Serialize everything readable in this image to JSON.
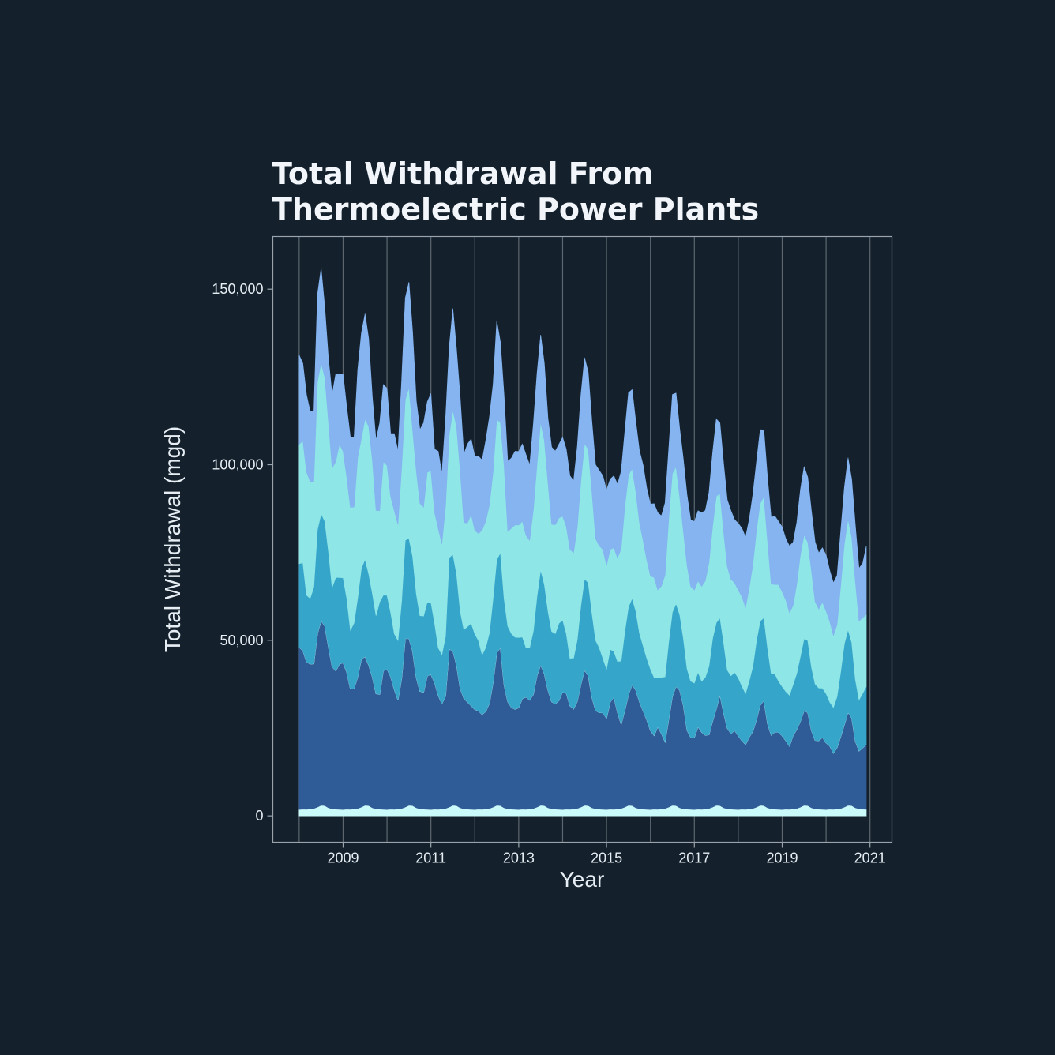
{
  "chart_data": {
    "type": "area",
    "title": [
      "Total Withdrawal From",
      "Thermoelectric Power Plants"
    ],
    "xlabel": "Year",
    "ylabel": "Total Withdrawal (mgd)",
    "xlim": [
      2007.4,
      2021.5
    ],
    "ylim": [
      -7500,
      165000
    ],
    "x_ticks": [
      2009,
      2011,
      2013,
      2015,
      2017,
      2019,
      2021
    ],
    "x_tick_labels": [
      "2009",
      "2011",
      "2013",
      "2015",
      "2017",
      "2019",
      "2021"
    ],
    "x_grid": [
      2008,
      2009,
      2010,
      2011,
      2012,
      2013,
      2014,
      2015,
      2016,
      2017,
      2018,
      2019,
      2020,
      2021
    ],
    "y_ticks": [
      0,
      50000,
      100000,
      150000
    ],
    "y_tick_labels": [
      "0",
      "50,000",
      "100,000",
      "150,000"
    ],
    "grid": true,
    "stacked": true,
    "x_start": 2008.0,
    "x_step": 0.08333333,
    "series": [
      {
        "color": "#cbfafb",
        "values": [
          1800,
          1900,
          1850,
          1950,
          2100,
          2500,
          3000,
          2900,
          2300,
          2000,
          1900,
          1850,
          1800,
          1900,
          1850,
          1950,
          2100,
          2500,
          3000,
          2900,
          2300,
          2000,
          1900,
          1850,
          1800,
          1900,
          1850,
          1950,
          2100,
          2500,
          3000,
          2900,
          2300,
          2000,
          1900,
          1850,
          1800,
          1900,
          1850,
          1950,
          2100,
          2500,
          3000,
          2900,
          2300,
          2000,
          1900,
          1850,
          1800,
          1900,
          1850,
          1950,
          2100,
          2500,
          3000,
          2900,
          2300,
          2000,
          1900,
          1850,
          1800,
          1900,
          1850,
          1950,
          2100,
          2500,
          3000,
          2900,
          2300,
          2000,
          1900,
          1850,
          1800,
          1900,
          1850,
          1950,
          2100,
          2500,
          3000,
          2900,
          2300,
          2000,
          1900,
          1850,
          1800,
          1900,
          1850,
          1950,
          2100,
          2500,
          3000,
          2900,
          2300,
          2000,
          1900,
          1850,
          1800,
          1900,
          1850,
          1950,
          2100,
          2500,
          3000,
          2900,
          2300,
          2000,
          1900,
          1850,
          1800,
          1900,
          1850,
          1950,
          2100,
          2500,
          3000,
          2900,
          2300,
          2000,
          1900,
          1850,
          1800,
          1900,
          1850,
          1950,
          2100,
          2500,
          3000,
          2900,
          2300,
          2000,
          1900,
          1850,
          1800,
          1900,
          1850,
          1950,
          2100,
          2500,
          3000,
          2900,
          2300,
          2000,
          1900,
          1850,
          1800,
          1900,
          1850,
          1950,
          2100,
          2500,
          3000,
          2900,
          2300,
          2000,
          1900,
          1850
        ]
      },
      {
        "color": "#2f5b96",
        "values": [
          46200,
          45200,
          42000,
          41300,
          41200,
          49400,
          52600,
          51200,
          45800,
          40500,
          39400,
          41400,
          41800,
          39000,
          34300,
          34300,
          37500,
          42100,
          42400,
          40000,
          37200,
          32800,
          32700,
          39500,
          40000,
          37700,
          34100,
          31000,
          37000,
          48000,
          47500,
          44000,
          37000,
          33500,
          33300,
          38000,
          38500,
          36000,
          32500,
          30000,
          32000,
          45000,
          44000,
          40000,
          34000,
          31500,
          30500,
          29500,
          28500,
          28000,
          27000,
          27800,
          30000,
          35500,
          43500,
          45000,
          35000,
          30500,
          29000,
          28500,
          29000,
          31500,
          32000,
          31000,
          32500,
          37500,
          40000,
          37500,
          33500,
          30500,
          30000,
          31000,
          33500,
          33000,
          29500,
          28500,
          30500,
          35000,
          38500,
          37000,
          31500,
          28000,
          27500,
          27500,
          26000,
          30500,
          32000,
          27500,
          24000,
          27500,
          31500,
          34500,
          33500,
          30500,
          28000,
          25500,
          22500,
          21000,
          23500,
          21500,
          19000,
          25000,
          31000,
          34000,
          33500,
          29500,
          22500,
          20500,
          20500,
          23500,
          22000,
          21000,
          21000,
          24500,
          27500,
          31500,
          27000,
          23000,
          21500,
          22500,
          21000,
          19500,
          18500,
          20500,
          22000,
          25000,
          28500,
          30000,
          24000,
          21000,
          22000,
          22000,
          21000,
          19500,
          18000,
          21000,
          22500,
          24500,
          27000,
          26500,
          22000,
          19500,
          19500,
          20500,
          19000,
          18000,
          16000,
          17500,
          20500,
          23500,
          26500,
          25000,
          19000,
          16500,
          17500,
          18500
        ]
      },
      {
        "color": "#36a5ca",
        "values": [
          23800,
          25000,
          19000,
          18700,
          21800,
          29600,
          30400,
          29800,
          27200,
          22500,
          26600,
          24600,
          24200,
          21000,
          16700,
          18700,
          22500,
          25900,
          27600,
          26000,
          23800,
          22200,
          26300,
          21500,
          21000,
          18300,
          15900,
          17000,
          22000,
          28000,
          28500,
          27000,
          24000,
          21500,
          21700,
          21000,
          20500,
          17000,
          13500,
          14000,
          17000,
          26000,
          27500,
          26000,
          22000,
          19500,
          21500,
          23500,
          21500,
          20000,
          17000,
          18200,
          20000,
          24000,
          26500,
          27000,
          24500,
          21500,
          21000,
          20500,
          20000,
          17500,
          14000,
          15000,
          18000,
          22500,
          27000,
          25500,
          22500,
          20000,
          20000,
          22000,
          20500,
          17000,
          13500,
          14500,
          17500,
          22500,
          26000,
          26500,
          24000,
          20000,
          18500,
          15500,
          14000,
          15000,
          13000,
          14500,
          18000,
          22500,
          25000,
          24500,
          22500,
          19500,
          18500,
          17500,
          17500,
          16500,
          14000,
          16000,
          18500,
          22000,
          24000,
          23500,
          21500,
          19000,
          17500,
          16000,
          15500,
          15500,
          14500,
          16500,
          19500,
          23500,
          24500,
          22000,
          20000,
          16500,
          16500,
          16500,
          16500,
          15500,
          14500,
          16000,
          18500,
          22500,
          24000,
          23500,
          21500,
          17500,
          16500,
          14500,
          14000,
          14000,
          14500,
          14500,
          16000,
          18500,
          20500,
          20500,
          18000,
          16000,
          15000,
          14000,
          14000,
          12500,
          13000,
          14500,
          18500,
          23000,
          23500,
          21500,
          17500,
          14500,
          15500,
          16500
        ]
      },
      {
        "color": "#8fe6e6",
        "values": [
          34000,
          34800,
          35100,
          33300,
          30000,
          42000,
          43000,
          41000,
          37000,
          34000,
          33000,
          38000,
          36000,
          34500,
          35000,
          33000,
          40000,
          37000,
          40000,
          42000,
          38000,
          30000,
          26000,
          38000,
          37000,
          33000,
          35000,
          33000,
          38000,
          40000,
          43000,
          36000,
          35000,
          32000,
          31000,
          37000,
          37500,
          31500,
          34000,
          31500,
          37000,
          35000,
          41000,
          42000,
          40000,
          30500,
          29500,
          31000,
          29500,
          30500,
          35500,
          36000,
          36500,
          36000,
          40000,
          37000,
          38000,
          27000,
          30000,
          32000,
          32000,
          33000,
          32000,
          30500,
          34500,
          37500,
          42000,
          41000,
          36500,
          30500,
          31000,
          30000,
          29500,
          30500,
          31000,
          30000,
          32000,
          35500,
          38500,
          38000,
          34500,
          29000,
          29000,
          31000,
          29500,
          28500,
          29500,
          29500,
          32000,
          35500,
          37500,
          37000,
          34000,
          31500,
          30000,
          28000,
          26500,
          28500,
          25000,
          26000,
          29000,
          35000,
          39500,
          39000,
          33500,
          30500,
          29500,
          27000,
          26500,
          26000,
          27000,
          27500,
          29500,
          32000,
          36000,
          35500,
          31500,
          29500,
          27500,
          25500,
          25000,
          25500,
          24500,
          26500,
          29000,
          31500,
          33500,
          34500,
          30500,
          25500,
          25500,
          27500,
          27000,
          26000,
          23500,
          22500,
          25500,
          29000,
          29500,
          28000,
          27500,
          23500,
          22500,
          24500,
          23500,
          23000,
          20500,
          20500,
          24500,
          28500,
          31500,
          30000,
          28000,
          22500,
          21500,
          20500
        ]
      },
      {
        "color": "#85b4f0",
        "values": [
          25400,
          22000,
          22000,
          20000,
          20000,
          25000,
          27000,
          20000,
          18000,
          21000,
          25000,
          20000,
          22000,
          20000,
          20000,
          20000,
          25000,
          30000,
          30000,
          25000,
          18000,
          20000,
          25000,
          22000,
          22000,
          18000,
          22000,
          21000,
          25000,
          29000,
          30000,
          28000,
          20000,
          21000,
          24000,
          20000,
          22000,
          18000,
          22000,
          20000,
          25000,
          25000,
          29000,
          22000,
          21000,
          19500,
          22500,
          21500,
          21000,
          22000,
          20000,
          23000,
          25000,
          25000,
          28000,
          23000,
          20000,
          20000,
          20000,
          21000,
          21000,
          22000,
          23000,
          21500,
          24500,
          26000,
          25000,
          22000,
          18500,
          22000,
          21000,
          21000,
          22500,
          22000,
          21000,
          20500,
          23000,
          24500,
          24500,
          22000,
          20000,
          21000,
          21500,
          21000,
          21500,
          20000,
          20500,
          21000,
          22000,
          21500,
          23500,
          22500,
          20000,
          20500,
          21500,
          20500,
          20500,
          21000,
          22000,
          20000,
          20500,
          20000,
          22500,
          21000,
          19500,
          20500,
          20000,
          19000,
          19500,
          20000,
          21000,
          20000,
          20000,
          21000,
          22000,
          20000,
          19500,
          19000,
          19500,
          18000,
          19000,
          19500,
          20000,
          19500,
          20000,
          19500,
          21000,
          19000,
          18000,
          19000,
          19500,
          18000,
          18500,
          17500,
          19000,
          18000,
          17500,
          18500,
          19500,
          18500,
          17000,
          17000,
          16000,
          15500,
          16000,
          14500,
          15000,
          14000,
          15500,
          16000,
          17500,
          16500,
          16000,
          15000,
          15500,
          19500
        ]
      }
    ]
  }
}
